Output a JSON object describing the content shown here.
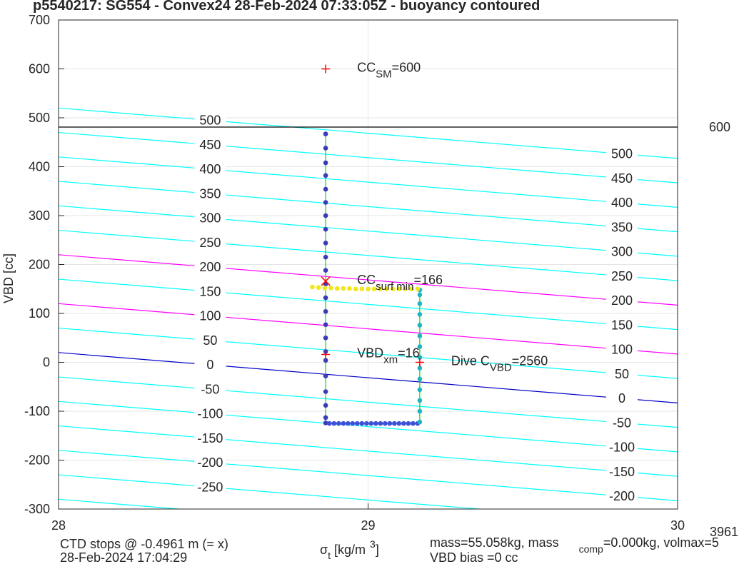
{
  "chart_data": {
    "type": "buoyancy",
    "title": "p5540217: SG554 - Convex24 28-Feb-2024 07:33:05Z - buoyancy contoured",
    "ylabel": "VBD [cc]",
    "xlabel": {
      "main": "σ",
      "sub": "t",
      "rest": " [kg/m",
      "sup": "3",
      "end": "]"
    },
    "xlim": [
      28,
      30
    ],
    "xticks": [
      28,
      29,
      30
    ],
    "ylim": [
      -300,
      700
    ],
    "yticks": [
      -300,
      -200,
      -100,
      0,
      100,
      200,
      300,
      400,
      500,
      600,
      700
    ],
    "grid": true,
    "contours": [
      {
        "level": -300,
        "color": "#00ffff",
        "values": [
          -280,
          -383
        ]
      },
      {
        "level": -250,
        "color": "#00ffff",
        "values": [
          -230,
          -333
        ]
      },
      {
        "level": -200,
        "color": "#00ffff",
        "values": [
          -180,
          -283
        ]
      },
      {
        "level": -150,
        "color": "#00ffff",
        "values": [
          -130,
          -233
        ]
      },
      {
        "level": -100,
        "color": "#00ffff",
        "values": [
          -80,
          -183
        ]
      },
      {
        "level": -50,
        "color": "#00ffff",
        "values": [
          -30,
          -133
        ]
      },
      {
        "level": 0,
        "color": "#0000c8",
        "values": [
          20,
          -83
        ]
      },
      {
        "level": 50,
        "color": "#00ffff",
        "values": [
          70,
          -33
        ]
      },
      {
        "level": 100,
        "color": "#ff00ff",
        "values": [
          120,
          17
        ]
      },
      {
        "level": 150,
        "color": "#00ffff",
        "values": [
          170,
          67
        ]
      },
      {
        "level": 200,
        "color": "#ff00ff",
        "values": [
          220,
          117
        ]
      },
      {
        "level": 250,
        "color": "#00ffff",
        "values": [
          270,
          167
        ]
      },
      {
        "level": 300,
        "color": "#00ffff",
        "values": [
          320,
          217
        ]
      },
      {
        "level": 350,
        "color": "#00ffff",
        "values": [
          370,
          267
        ]
      },
      {
        "level": 400,
        "color": "#00ffff",
        "values": [
          420,
          317
        ]
      },
      {
        "level": 450,
        "color": "#00ffff",
        "values": [
          470,
          367
        ]
      },
      {
        "level": 500,
        "color": "#00ffff",
        "values": [
          520,
          417
        ]
      }
    ],
    "hline": {
      "value": 481,
      "label": "600",
      "color": "#000000"
    },
    "path_color": "#00dd00",
    "series": [
      {
        "color": "#3b3bb8",
        "x": [
          28.863,
          28.863,
          28.863,
          28.863,
          28.863,
          28.863,
          28.863,
          28.863,
          28.863,
          28.863,
          28.863,
          28.863,
          28.863,
          28.863,
          28.863,
          28.863,
          28.863,
          28.863,
          28.863,
          28.863,
          28.863,
          28.863,
          28.863
        ],
        "values": [
          467,
          438,
          408,
          382,
          354,
          327,
          300,
          272,
          244,
          215,
          188,
          160,
          132,
          104,
          77,
          50,
          22,
          4,
          -28,
          -60,
          -88,
          -113,
          -124
        ]
      },
      {
        "color": "#3d50d8",
        "x": [
          28.875,
          28.89,
          28.905,
          28.92,
          28.935,
          28.95,
          28.965,
          28.98,
          28.995,
          29.01,
          29.025,
          29.04,
          29.055,
          29.07,
          29.085,
          29.1,
          29.115,
          29.13,
          29.145,
          29.16
        ],
        "values": [
          -125,
          -125,
          -125,
          -125,
          -125,
          -125,
          -125,
          -125,
          -125,
          -125,
          -125,
          -125,
          -125,
          -125,
          -125,
          -125,
          -125,
          -125,
          -125,
          -125
        ]
      },
      {
        "color": "#1fb3c4",
        "x": [
          29.167,
          29.167,
          29.167,
          29.167,
          29.167,
          29.167,
          29.167,
          29.167,
          29.167,
          29.167,
          29.167,
          29.167,
          29.167,
          29.167
        ],
        "values": [
          -122,
          -100,
          -78,
          -56,
          -34,
          -12,
          10,
          32,
          54,
          76,
          98,
          120,
          138,
          148
        ]
      },
      {
        "color": "#f2e61c",
        "x": [
          28.82,
          28.84,
          28.86,
          28.88,
          28.9,
          28.92,
          28.94,
          28.96,
          28.98,
          29.0,
          29.02,
          29.04,
          29.06,
          29.08,
          29.1,
          29.12,
          29.14,
          29.16
        ],
        "values": [
          154,
          153,
          152,
          152,
          151,
          151,
          151,
          150,
          150,
          150,
          150,
          150,
          150,
          150,
          150,
          150,
          150,
          150
        ]
      }
    ],
    "marker_color": "#ff0000",
    "markers": [
      {
        "x": 28.863,
        "y": 600,
        "symbol": "+",
        "label": "CC",
        "label_sub": "SM",
        "label_rest": "=600"
      },
      {
        "x": 28.863,
        "y": 166,
        "symbol": "x",
        "label": "CC",
        "label_sub": "surf min",
        "label_rest": "=166"
      },
      {
        "x": 28.863,
        "y": 16,
        "symbol": "+",
        "label": "VBD",
        "label_sub": "xm",
        "label_rest": "=16"
      },
      {
        "x": 29.167,
        "y": 0,
        "symbol": "+",
        "label": "Dive C",
        "label_sub": "VBD",
        "label_rest": "=2560"
      }
    ],
    "footer": {
      "ctd": "CTD stops @ -0.4961 m (= x)",
      "time": "28-Feb-2024 17:04:29",
      "mass": {
        "main": "mass=55.058kg, mass",
        "sub": "comp",
        "rest": "=0.000kg, volmax=5"
      },
      "bias": "VBD bias =0 cc",
      "corner": "3961"
    }
  }
}
